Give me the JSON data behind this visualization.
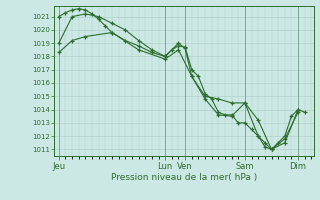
{
  "title": "Pression niveau de la mer( hPa )",
  "bg_color": "#cce8e4",
  "grid_color": "#aaccc8",
  "line_color": "#2d6e2d",
  "ylim": [
    1010.5,
    1021.8
  ],
  "yticks": [
    1011,
    1012,
    1013,
    1014,
    1015,
    1016,
    1017,
    1018,
    1019,
    1020,
    1021
  ],
  "x_day_labels": [
    {
      "label": "Jeu",
      "x": 0
    },
    {
      "label": "Lun",
      "x": 96
    },
    {
      "label": "Ven",
      "x": 114
    },
    {
      "label": "Sam",
      "x": 168
    },
    {
      "label": "Dim",
      "x": 216
    }
  ],
  "xlim": [
    -4,
    230
  ],
  "line1_x": [
    0,
    6,
    12,
    18,
    24,
    30,
    36,
    42,
    48,
    60,
    72,
    84,
    96,
    102,
    108,
    114,
    120,
    126,
    132,
    138,
    144,
    150,
    156,
    162,
    168,
    174,
    180,
    186,
    192,
    198,
    204,
    210,
    216,
    222
  ],
  "line1_y": [
    1021.0,
    1021.3,
    1021.5,
    1021.6,
    1021.5,
    1021.2,
    1020.8,
    1020.3,
    1019.8,
    1019.2,
    1018.8,
    1018.3,
    1018.0,
    1018.5,
    1018.8,
    1018.7,
    1017.0,
    1016.5,
    1015.2,
    1014.8,
    1013.8,
    1013.6,
    1013.6,
    1013.0,
    1013.0,
    1012.5,
    1012.0,
    1011.5,
    1011.0,
    1011.5,
    1012.0,
    1013.5,
    1014.0,
    1013.8
  ],
  "line2_x": [
    0,
    12,
    24,
    36,
    48,
    60,
    72,
    84,
    96,
    108,
    114,
    120,
    132,
    144,
    156,
    168,
    180,
    186,
    192,
    204,
    216
  ],
  "line2_y": [
    1019.0,
    1021.0,
    1021.2,
    1021.0,
    1020.5,
    1020.0,
    1019.2,
    1018.5,
    1018.0,
    1019.0,
    1018.6,
    1016.5,
    1014.8,
    1013.6,
    1013.5,
    1014.5,
    1012.0,
    1011.2,
    1011.0,
    1011.8,
    1013.8
  ],
  "line3_x": [
    0,
    12,
    24,
    48,
    72,
    96,
    108,
    120,
    132,
    144,
    156,
    168,
    180,
    192,
    204,
    216
  ],
  "line3_y": [
    1018.3,
    1019.2,
    1019.5,
    1019.8,
    1018.5,
    1017.8,
    1018.5,
    1016.5,
    1015.0,
    1014.8,
    1014.5,
    1014.5,
    1013.2,
    1011.0,
    1011.5,
    1014.0
  ],
  "vline_x": [
    0,
    96,
    114,
    168,
    216
  ]
}
